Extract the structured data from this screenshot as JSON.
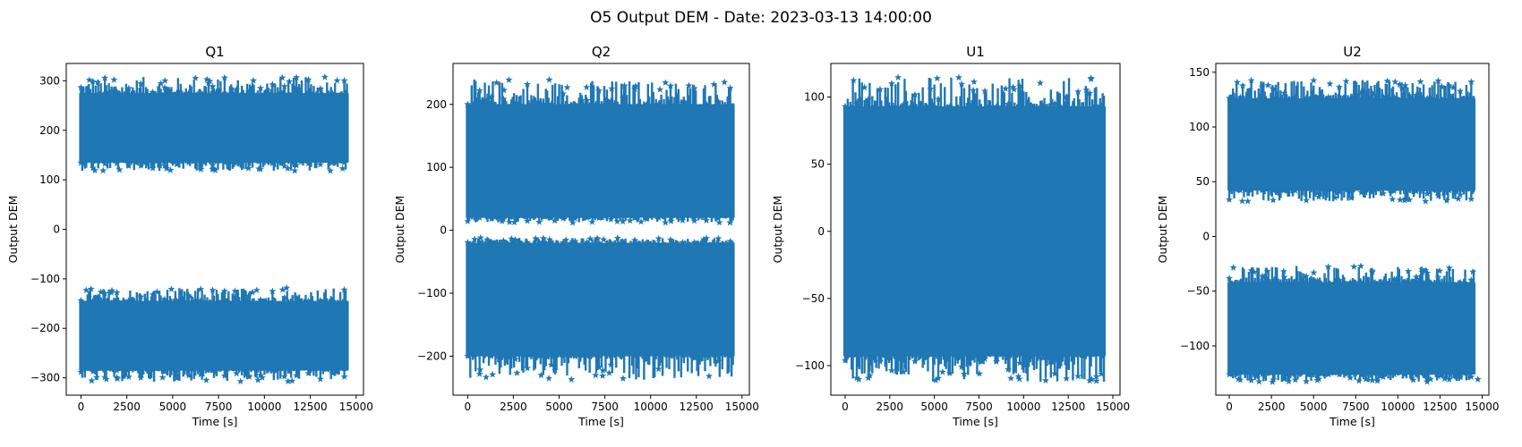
{
  "chart_data": [
    {
      "type": "scatter",
      "title": "Q1",
      "xlabel": "Time [s]",
      "ylabel": "Output DEM",
      "xlim": [
        -800,
        15400
      ],
      "ylim": [
        -335,
        335
      ],
      "xticks": [
        0,
        2500,
        5000,
        7500,
        10000,
        12500,
        15000
      ],
      "yticks": [
        -300,
        -200,
        -100,
        0,
        100,
        200,
        300
      ],
      "marker": "star",
      "x_range": [
        0,
        14500
      ],
      "bands": [
        {
          "center": 205,
          "halfwidth": 70,
          "upper_env_max": 308,
          "lower_env_min": 118
        },
        {
          "center": -215,
          "halfwidth": 70,
          "upper_env_max": -118,
          "lower_env_min": -308
        }
      ]
    },
    {
      "type": "scatter",
      "title": "Q2",
      "xlabel": "Time [s]",
      "ylabel": "Output DEM",
      "xlim": [
        -800,
        15400
      ],
      "ylim": [
        -262,
        265
      ],
      "xticks": [
        0,
        2500,
        5000,
        7500,
        10000,
        12500,
        15000
      ],
      "yticks": [
        -200,
        -100,
        0,
        100,
        200
      ],
      "marker": "star",
      "x_range": [
        0,
        14500
      ],
      "bands": [
        {
          "center": 110,
          "halfwidth": 90,
          "upper_env_max": 240,
          "lower_env_min": 12
        },
        {
          "center": -110,
          "halfwidth": 90,
          "upper_env_max": -12,
          "lower_env_min": -238
        }
      ]
    },
    {
      "type": "scatter",
      "title": "U1",
      "xlabel": "Time [s]",
      "ylabel": "Output DEM",
      "xlim": [
        -800,
        15400
      ],
      "ylim": [
        -122,
        125
      ],
      "xticks": [
        0,
        2500,
        5000,
        7500,
        10000,
        12500,
        15000
      ],
      "yticks": [
        -100,
        -50,
        0,
        50,
        100
      ],
      "marker": "star",
      "x_range": [
        0,
        14500
      ],
      "bands": [
        {
          "center": 0,
          "halfwidth": 93,
          "upper_env_max": 115,
          "lower_env_min": -112
        }
      ]
    },
    {
      "type": "scatter",
      "title": "U2",
      "xlabel": "Time [s]",
      "ylabel": "Output DEM",
      "xlim": [
        -800,
        15400
      ],
      "ylim": [
        -145,
        158
      ],
      "xticks": [
        0,
        2500,
        5000,
        7500,
        10000,
        12500,
        15000
      ],
      "yticks": [
        -100,
        -50,
        0,
        50,
        100,
        150
      ],
      "marker": "star",
      "x_range": [
        0,
        14500
      ],
      "bands": [
        {
          "center": 84,
          "halfwidth": 42,
          "upper_env_max": 143,
          "lower_env_min": 32
        },
        {
          "center": -84,
          "halfwidth": 42,
          "upper_env_max": -27,
          "lower_env_min": -133
        }
      ]
    }
  ],
  "figure": {
    "suptitle": "O5 Output DEM - Date: 2023-03-13 14:00:00",
    "series_color": "#1f77b4"
  }
}
